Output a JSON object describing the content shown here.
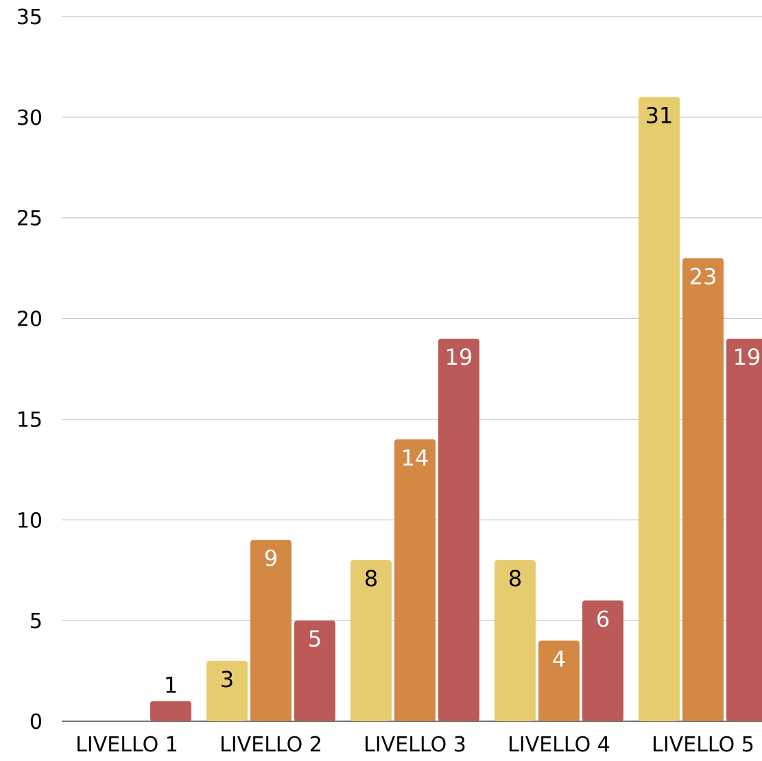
{
  "chart_data": {
    "type": "bar",
    "categories": [
      "LIVELLO 1",
      "LIVELLO 2",
      "LIVELLO 3",
      "LIVELLO 4",
      "LIVELLO 5"
    ],
    "series": [
      {
        "values": [
          null,
          3,
          8,
          8,
          31
        ],
        "color": "#E6CC6E",
        "label_color": "#000000"
      },
      {
        "values": [
          null,
          9,
          14,
          4,
          23
        ],
        "color": "#D38843",
        "label_color": "#ffffff"
      },
      {
        "values": [
          1,
          5,
          19,
          6,
          19
        ],
        "color": "#BC5A58",
        "label_color": "#ffffff"
      }
    ],
    "label_color_overrides": [
      {
        "series": 2,
        "category": 0,
        "color": "#000000"
      }
    ],
    "ylim": [
      0,
      35
    ],
    "yticks": [
      0,
      5,
      10,
      15,
      20,
      25,
      30,
      35
    ],
    "grid": true,
    "gridline_color": "#c8c8c8",
    "data_labels": true,
    "legend": "none"
  }
}
